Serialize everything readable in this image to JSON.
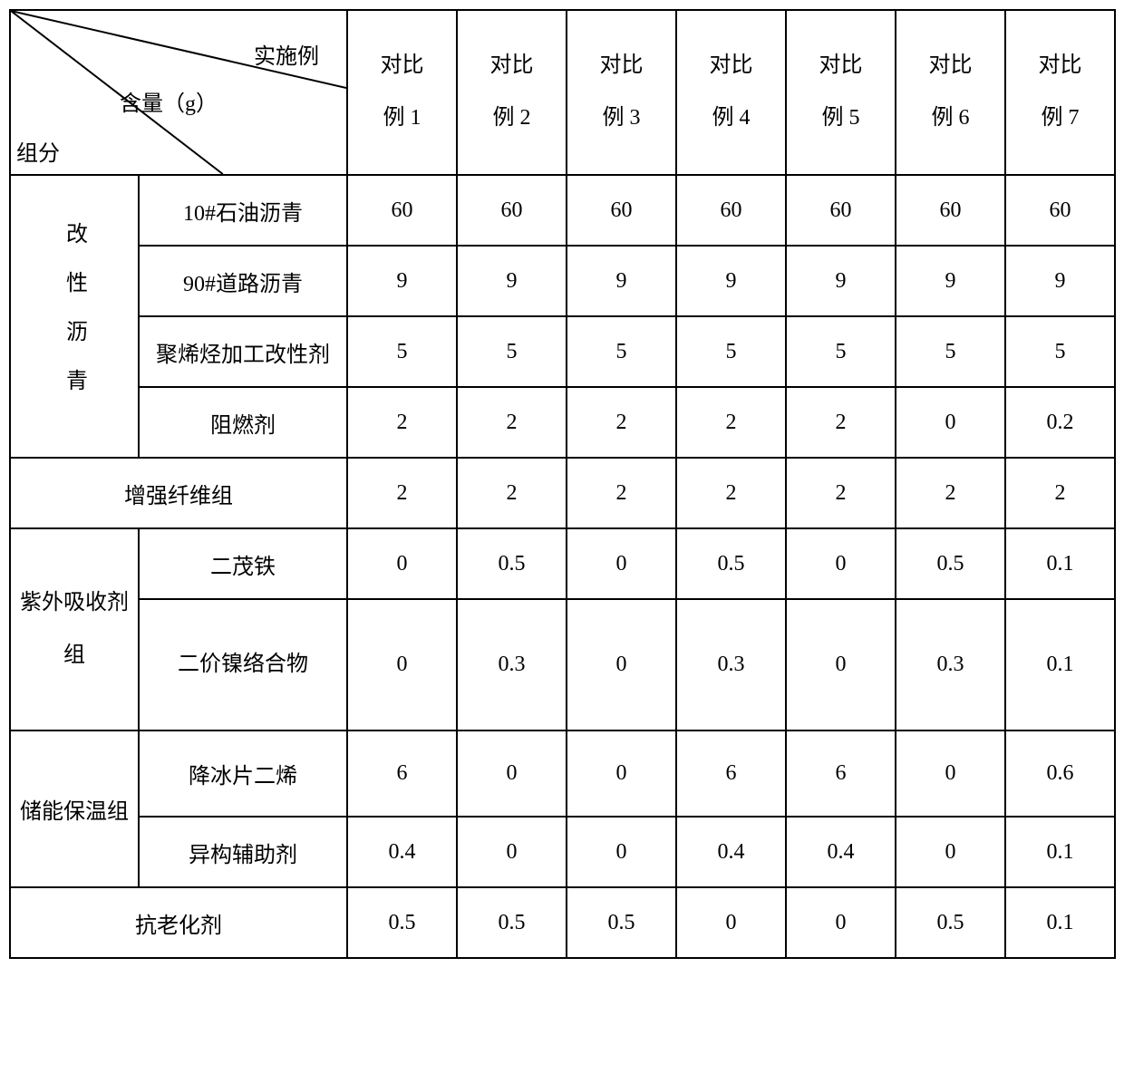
{
  "header": {
    "top_label": "实施例",
    "mid_label": "含量（g）",
    "bot_label": "组分",
    "columns": [
      "对比例 1",
      "对比例 2",
      "对比例 3",
      "对比例 4",
      "对比例 5",
      "对比例 6",
      "对比例 7"
    ]
  },
  "groups": {
    "modified_asphalt": {
      "label": "改性沥青",
      "rows": [
        {
          "name": "10#石油沥青",
          "v": [
            "60",
            "60",
            "60",
            "60",
            "60",
            "60",
            "60"
          ]
        },
        {
          "name": "90#道路沥青",
          "v": [
            "9",
            "9",
            "9",
            "9",
            "9",
            "9",
            "9"
          ]
        },
        {
          "name": "聚烯烃加工改性剂",
          "v": [
            "5",
            "5",
            "5",
            "5",
            "5",
            "5",
            "5"
          ]
        },
        {
          "name": "阻燃剂",
          "v": [
            "2",
            "2",
            "2",
            "2",
            "2",
            "0",
            "0.2"
          ]
        }
      ]
    },
    "fiber": {
      "name": "增强纤维组",
      "v": [
        "2",
        "2",
        "2",
        "2",
        "2",
        "2",
        "2"
      ]
    },
    "uv": {
      "label": "紫外吸收剂组",
      "rows": [
        {
          "name": "二茂铁",
          "v": [
            "0",
            "0.5",
            "0",
            "0.5",
            "0",
            "0.5",
            "0.1"
          ]
        },
        {
          "name": "二价镍络合物",
          "v": [
            "0",
            "0.3",
            "0",
            "0.3",
            "0",
            "0.3",
            "0.1"
          ]
        }
      ]
    },
    "storage": {
      "label": "储能保温组",
      "rows": [
        {
          "name": "降冰片二烯",
          "v": [
            "6",
            "0",
            "0",
            "6",
            "6",
            "0",
            "0.6"
          ]
        },
        {
          "name": "异构辅助剂",
          "v": [
            "0.4",
            "0",
            "0",
            "0.4",
            "0.4",
            "0",
            "0.1"
          ]
        }
      ]
    },
    "anti_aging": {
      "name": "抗老化剂",
      "v": [
        "0.5",
        "0.5",
        "0.5",
        "0",
        "0",
        "0.5",
        "0.1"
      ]
    }
  },
  "style": {
    "border_color": "#000000",
    "bg_color": "#ffffff",
    "font_size": 24,
    "col_widths": {
      "group": 142,
      "sub": 230,
      "data": 121
    }
  }
}
